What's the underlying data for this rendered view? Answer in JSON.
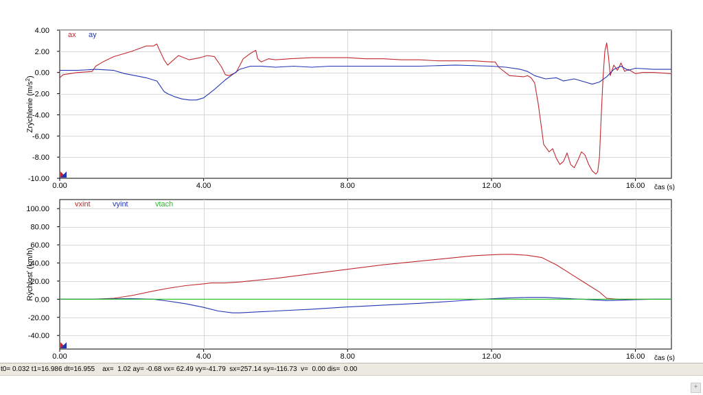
{
  "status": {
    "text": "t0= 0.032 t1=16.986 dt=16.955    ax=  1.02 ay= -0.68 vx= 62.49 vy=-41.79  sx=257.14 sy=-116.73  v=  0.00 dis=  0.00"
  },
  "resize_icon": "plus-grip-icon",
  "colors": {
    "red": "#c0282d",
    "blue": "#2234b4",
    "green": "#20c020",
    "axis": "#000000",
    "grid": "#d7d7d7"
  },
  "chart_data": [
    {
      "type": "line",
      "ylabel_main": "Zrýchlenie  (m/s",
      "ylabel_sup": "2",
      "ylabel_tail": ")",
      "xlabel": "čas (s)",
      "xlim": [
        0,
        17
      ],
      "ylim": [
        -10,
        4
      ],
      "xticks": [
        0,
        4,
        8,
        12,
        16
      ],
      "xtick_labels": [
        "0.00",
        "4.00",
        "8.00",
        "12.00",
        "16.00"
      ],
      "yticks": [
        4,
        2,
        0,
        -2,
        -4,
        -6,
        -8,
        -10
      ],
      "ytick_labels": [
        "4.00",
        "2.00",
        "0.00",
        "-2.00",
        "-4.00",
        "-6.00",
        "-8.00",
        "-10.00"
      ],
      "legend_position": "top-left",
      "series": [
        {
          "name": "ax",
          "color": "#c0282d",
          "x": [
            0,
            0.1,
            0.3,
            0.5,
            0.9,
            1.0,
            1.2,
            1.5,
            2.0,
            2.4,
            2.6,
            2.7,
            2.75,
            2.9,
            3.0,
            3.3,
            3.6,
            3.9,
            4.1,
            4.3,
            4.5,
            4.6,
            4.7,
            4.9,
            5.1,
            5.3,
            5.45,
            5.5,
            5.6,
            5.8,
            6.0,
            6.4,
            7.0,
            7.5,
            8.0,
            8.5,
            9.0,
            9.5,
            10.0,
            10.5,
            11.0,
            11.5,
            12.0,
            12.1,
            12.2,
            12.5,
            12.9,
            13.0,
            13.1,
            13.2,
            13.3,
            13.4,
            13.45,
            13.6,
            13.7,
            13.8,
            13.9,
            14.0,
            14.1,
            14.2,
            14.3,
            14.4,
            14.5,
            14.6,
            14.7,
            14.8,
            14.9,
            14.95,
            15.0,
            15.05,
            15.1,
            15.15,
            15.2,
            15.25,
            15.3,
            15.4,
            15.5,
            15.6,
            15.7,
            15.8,
            16.0,
            16.2,
            16.5,
            17.0
          ],
          "y": [
            -0.5,
            -0.2,
            -0.1,
            0.0,
            0.1,
            0.6,
            1.0,
            1.5,
            2.0,
            2.5,
            2.5,
            2.7,
            2.3,
            1.2,
            0.7,
            1.6,
            1.2,
            1.4,
            1.6,
            1.5,
            0.5,
            -0.2,
            -0.3,
            0.0,
            1.3,
            1.8,
            2.1,
            1.3,
            1.0,
            1.3,
            1.2,
            1.3,
            1.4,
            1.4,
            1.4,
            1.3,
            1.3,
            1.2,
            1.2,
            1.1,
            1.1,
            1.1,
            1.0,
            1.0,
            0.5,
            -0.3,
            -0.4,
            -0.3,
            -0.5,
            -1.0,
            -3.0,
            -5.5,
            -6.8,
            -7.5,
            -7.2,
            -8.1,
            -8.7,
            -8.4,
            -7.6,
            -8.7,
            -9.0,
            -8.3,
            -7.5,
            -7.8,
            -8.7,
            -9.3,
            -9.6,
            -9.4,
            -8.0,
            -4.0,
            -0.5,
            2.0,
            2.8,
            1.5,
            -0.3,
            0.7,
            0.2,
            0.9,
            0.1,
            0.3,
            -0.1,
            0.0,
            0.0,
            -0.1
          ]
        },
        {
          "name": "ay",
          "color": "#2234b4",
          "x": [
            0,
            0.5,
            1.0,
            1.5,
            1.8,
            2.1,
            2.4,
            2.7,
            2.9,
            3.0,
            3.2,
            3.4,
            3.6,
            3.8,
            4.0,
            4.3,
            4.6,
            4.8,
            5.0,
            5.3,
            5.6,
            6.0,
            6.5,
            7.0,
            7.5,
            8.0,
            9.0,
            10.0,
            11.0,
            12.0,
            12.4,
            12.8,
            13.0,
            13.2,
            13.5,
            13.8,
            14.0,
            14.3,
            14.6,
            14.8,
            15.0,
            15.2,
            15.4,
            15.6,
            15.8,
            16.0,
            16.5,
            17.0
          ],
          "y": [
            0.2,
            0.2,
            0.3,
            0.2,
            -0.1,
            -0.3,
            -0.5,
            -0.8,
            -1.8,
            -2.0,
            -2.3,
            -2.5,
            -2.6,
            -2.6,
            -2.4,
            -1.6,
            -0.7,
            -0.2,
            0.3,
            0.6,
            0.6,
            0.5,
            0.6,
            0.5,
            0.6,
            0.6,
            0.6,
            0.6,
            0.7,
            0.6,
            0.5,
            0.3,
            0.1,
            -0.3,
            -0.6,
            -0.5,
            -0.8,
            -0.6,
            -0.9,
            -1.1,
            -0.9,
            -0.4,
            0.3,
            0.6,
            0.2,
            0.4,
            0.3,
            0.3
          ]
        }
      ]
    },
    {
      "type": "line",
      "ylabel": "Rýchlosť (km/h)",
      "xlabel": "čas (s)",
      "xlim": [
        0,
        17
      ],
      "ylim": [
        -55,
        110
      ],
      "xticks": [
        0,
        4,
        8,
        12,
        16
      ],
      "xtick_labels": [
        "0.00",
        "4.00",
        "8.00",
        "12.00",
        "16.00"
      ],
      "yticks": [
        100,
        80,
        60,
        40,
        20,
        0,
        -20,
        -40
      ],
      "ytick_labels": [
        "100.00",
        "80.00",
        "60.00",
        "40.00",
        "20.00",
        "0.00",
        "-20.00",
        "-40.00"
      ],
      "legend_position": "top-left",
      "series": [
        {
          "name": "vxint",
          "color": "#c0282d",
          "x": [
            0,
            0.9,
            1.5,
            2.0,
            2.6,
            3.0,
            3.5,
            4.0,
            4.2,
            4.6,
            5.0,
            5.5,
            6.0,
            7.0,
            8.0,
            9.0,
            10.0,
            11.0,
            11.5,
            12.0,
            12.3,
            12.6,
            13.0,
            13.4,
            13.8,
            14.2,
            14.6,
            15.0,
            15.2,
            15.5,
            16.0,
            16.5,
            17.0
          ],
          "y": [
            0,
            0,
            1,
            4,
            9,
            12,
            15,
            17,
            18,
            18,
            19,
            21,
            23,
            28,
            33,
            38,
            42,
            46,
            48,
            49,
            49.5,
            49.5,
            48.5,
            46,
            38,
            28,
            18,
            8,
            1,
            0,
            0,
            0,
            0
          ]
        },
        {
          "name": "vyint",
          "color": "#2234b4",
          "x": [
            0,
            0.9,
            1.5,
            2.0,
            2.6,
            3.0,
            3.5,
            4.0,
            4.4,
            4.8,
            5.0,
            5.5,
            6.0,
            7.0,
            8.0,
            9.0,
            10.0,
            11.0,
            11.5,
            12.0,
            12.5,
            13.0,
            13.5,
            14.0,
            14.5,
            15.0,
            15.2,
            15.6,
            16.0,
            16.5,
            17.0
          ],
          "y": [
            0,
            0,
            0.5,
            0.7,
            0,
            -2,
            -5,
            -9,
            -13,
            -15,
            -15,
            -14,
            -13,
            -11,
            -8.5,
            -6.5,
            -4.5,
            -2,
            -0.5,
            0.5,
            1.5,
            2,
            2,
            1,
            0,
            -1,
            -1.5,
            -1,
            -0.5,
            0,
            0
          ]
        },
        {
          "name": "vtach",
          "color": "#20c020",
          "x": [
            0,
            17
          ],
          "y": [
            0,
            0
          ]
        }
      ]
    }
  ]
}
